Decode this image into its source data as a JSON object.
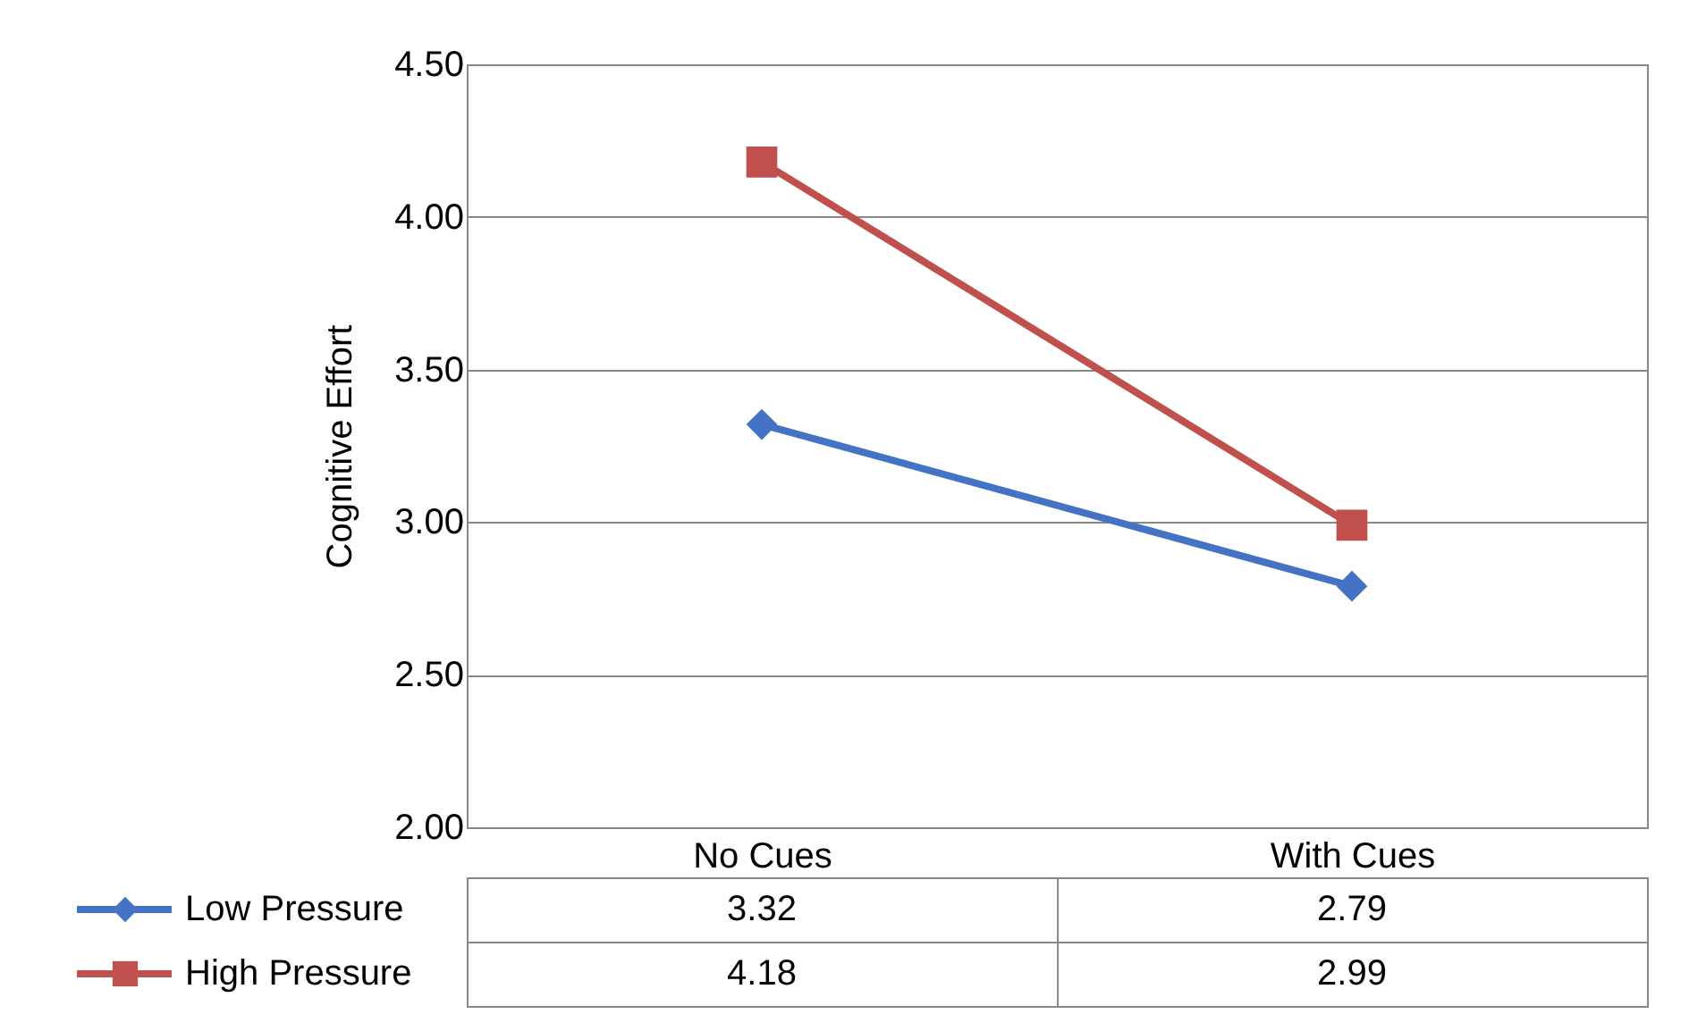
{
  "chart_data": {
    "type": "line",
    "ylabel": "Cognitive Effort",
    "categories": [
      "No Cues",
      "With Cues"
    ],
    "series": [
      {
        "name": "Low Pressure",
        "color": "#4472c4",
        "values": [
          3.32,
          2.79
        ],
        "marker": "diamond"
      },
      {
        "name": "High Pressure",
        "color": "#c0504d",
        "values": [
          4.18,
          2.99
        ],
        "marker": "square"
      }
    ],
    "ylim": [
      2.0,
      4.5
    ],
    "yticks": [
      {
        "value": 2.0,
        "label": "2.00"
      },
      {
        "value": 2.5,
        "label": "2.50"
      },
      {
        "value": 3.0,
        "label": "3.00"
      },
      {
        "value": 3.5,
        "label": "3.50"
      },
      {
        "value": 4.0,
        "label": "4.00"
      },
      {
        "value": 4.5,
        "label": "4.50"
      }
    ],
    "grid": "y",
    "legend": "bottom",
    "data_labels": true,
    "line_style": "solid"
  }
}
